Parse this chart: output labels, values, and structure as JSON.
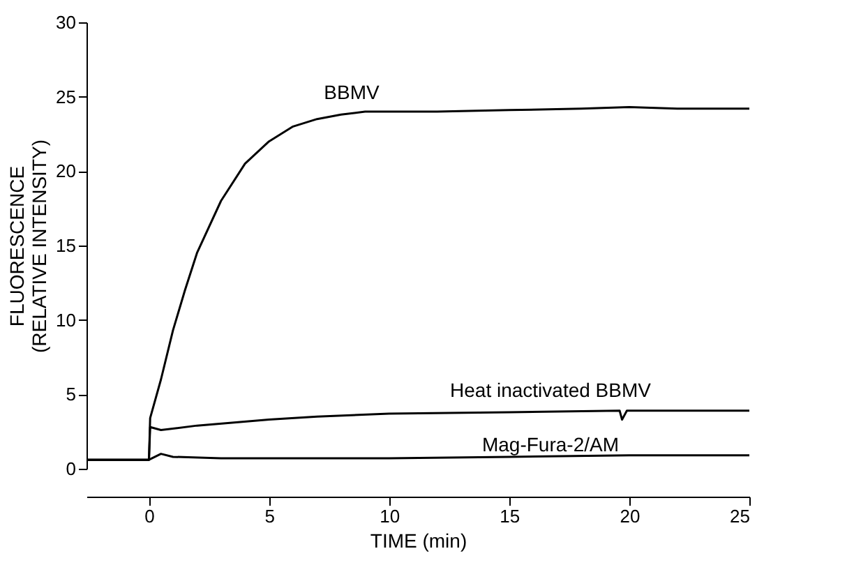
{
  "chart_data": {
    "type": "line",
    "xlabel": "TIME  (min)",
    "ylabel": "FLUORESCENCE\n(RELATIVE INTENSITY)",
    "xlim": [
      -2.6,
      25
    ],
    "ylim": [
      0,
      30
    ],
    "xticks": [
      0,
      5,
      10,
      15,
      20,
      25
    ],
    "yticks": [
      0,
      5,
      10,
      15,
      20,
      25,
      30
    ],
    "grid": false,
    "marker": "none",
    "line_style": "solid",
    "legend": false,
    "series": [
      {
        "name": "BBMV",
        "color": "#000000",
        "x": [
          -2.6,
          0,
          0.05,
          0.5,
          1,
          1.5,
          2,
          3,
          4,
          5,
          6,
          7,
          8,
          9,
          10,
          12,
          15,
          18,
          20,
          22,
          25
        ],
        "values": [
          0.6,
          0.6,
          3.4,
          6,
          9.3,
          12,
          14.5,
          18,
          20.5,
          22,
          23,
          23.5,
          23.8,
          24,
          24,
          24,
          24.1,
          24.2,
          24.3,
          24.2,
          24.2
        ]
      },
      {
        "name": "Heat inactivated BBMV",
        "color": "#000000",
        "x": [
          -2.6,
          0,
          0.05,
          0.5,
          2,
          5,
          7,
          10,
          15,
          19.6,
          19.7,
          19.9,
          23,
          25
        ],
        "values": [
          0.6,
          0.6,
          2.8,
          2.6,
          2.9,
          3.3,
          3.5,
          3.7,
          3.8,
          3.9,
          3.3,
          3.9,
          3.9,
          3.9
        ]
      },
      {
        "name": "Mag-Fura-2/AM",
        "color": "#000000",
        "x": [
          -2.6,
          0,
          0.5,
          1,
          3,
          5,
          10,
          15,
          20,
          25
        ],
        "values": [
          0.6,
          0.6,
          1.0,
          0.8,
          0.7,
          0.7,
          0.7,
          0.8,
          0.9,
          0.9
        ]
      }
    ]
  }
}
